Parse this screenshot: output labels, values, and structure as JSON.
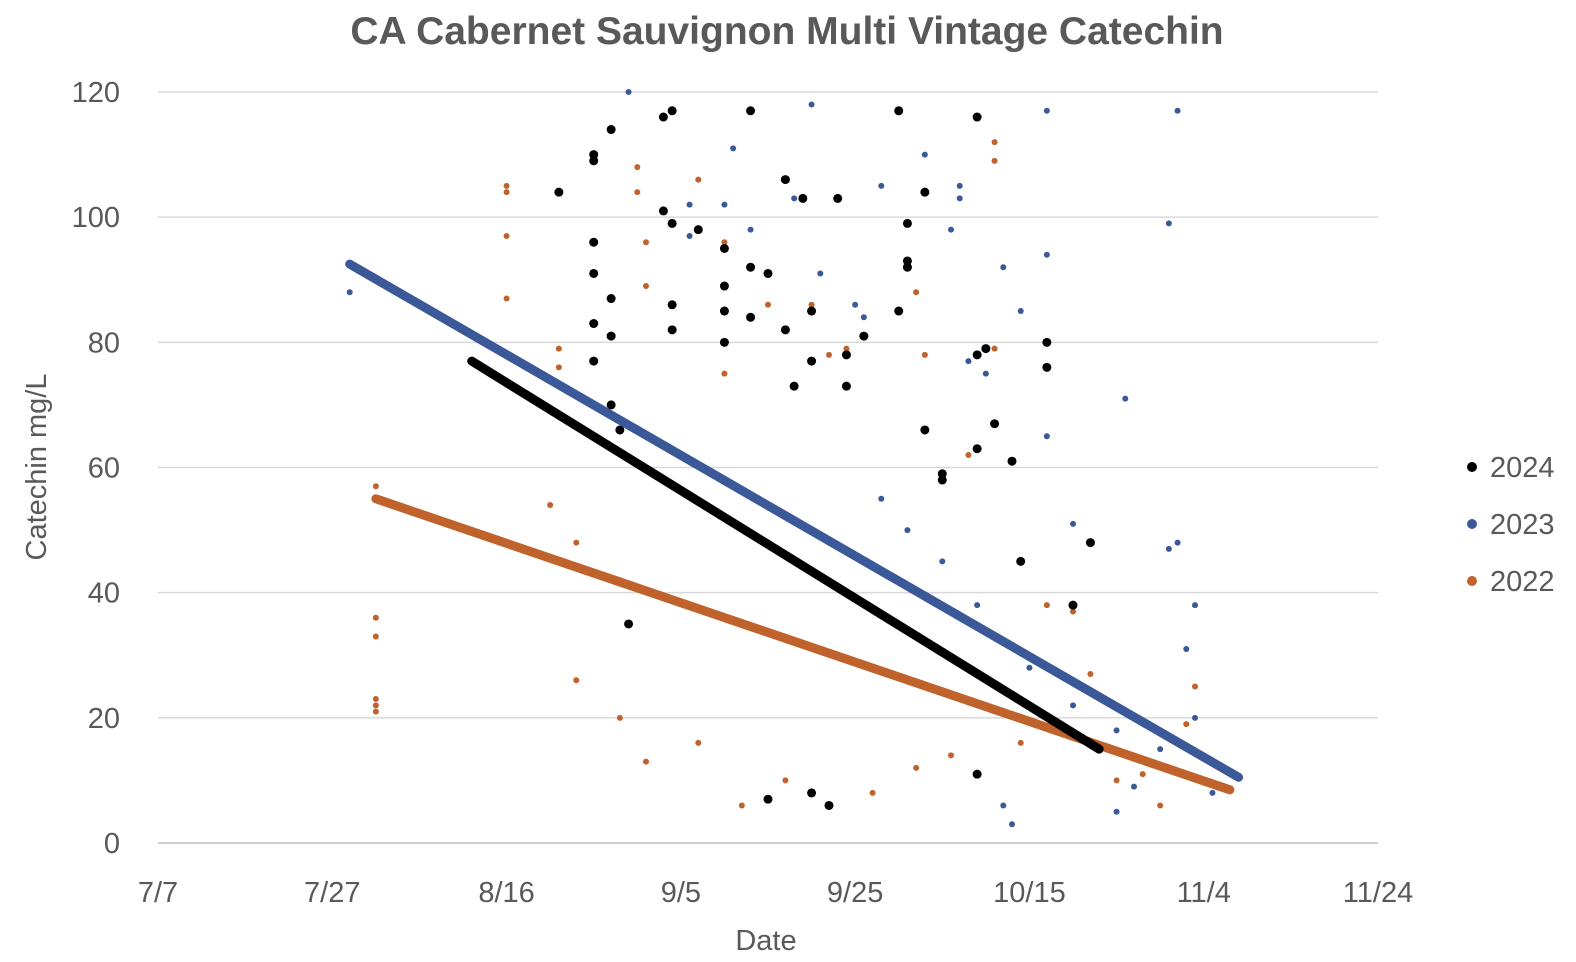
{
  "chart_data": {
    "type": "scatter",
    "title": "CA Cabernet Sauvignon Multi Vintage Catechin",
    "xlabel": "Date",
    "ylabel": "Catechin  mg/L",
    "x_ticks": [
      "7/7",
      "7/27",
      "8/16",
      "9/5",
      "9/25",
      "10/15",
      "11/4",
      "11/24"
    ],
    "y_ticks": [
      "0",
      "20",
      "40",
      "60",
      "80",
      "100",
      "120"
    ],
    "xlim": [
      "7/7",
      "11/24"
    ],
    "ylim": [
      0,
      120
    ],
    "grid": "horizontal",
    "legend_position": "right",
    "series": [
      {
        "name": "2024",
        "color": "#000000",
        "trendline": {
          "start": [
            "8/12",
            77
          ],
          "end": [
            "10/23",
            15
          ]
        },
        "points": [
          [
            "8/22",
            104
          ],
          [
            "8/26",
            110
          ],
          [
            "8/26",
            109
          ],
          [
            "8/26",
            96
          ],
          [
            "8/26",
            91
          ],
          [
            "8/26",
            83
          ],
          [
            "8/26",
            77
          ],
          [
            "8/28",
            114
          ],
          [
            "8/28",
            87
          ],
          [
            "8/28",
            81
          ],
          [
            "8/28",
            70
          ],
          [
            "8/29",
            66
          ],
          [
            "8/30",
            35
          ],
          [
            "9/3",
            116
          ],
          [
            "9/3",
            101
          ],
          [
            "9/4",
            117
          ],
          [
            "9/4",
            99
          ],
          [
            "9/4",
            86
          ],
          [
            "9/4",
            82
          ],
          [
            "9/7",
            98
          ],
          [
            "9/10",
            89
          ],
          [
            "9/10",
            85
          ],
          [
            "9/10",
            80
          ],
          [
            "9/10",
            95
          ],
          [
            "9/13",
            117
          ],
          [
            "9/13",
            92
          ],
          [
            "9/13",
            84
          ],
          [
            "9/15",
            91
          ],
          [
            "9/17",
            106
          ],
          [
            "9/17",
            82
          ],
          [
            "9/18",
            73
          ],
          [
            "9/19",
            103
          ],
          [
            "9/20",
            85
          ],
          [
            "9/20",
            77
          ],
          [
            "9/23",
            103
          ],
          [
            "9/24",
            78
          ],
          [
            "9/24",
            73
          ],
          [
            "9/26",
            81
          ],
          [
            "9/30",
            117
          ],
          [
            "9/30",
            85
          ],
          [
            "10/1",
            99
          ],
          [
            "10/1",
            93
          ],
          [
            "10/1",
            92
          ],
          [
            "10/3",
            104
          ],
          [
            "10/3",
            66
          ],
          [
            "10/5",
            59
          ],
          [
            "10/5",
            58
          ],
          [
            "10/9",
            116
          ],
          [
            "10/10",
            79
          ],
          [
            "10/9",
            78
          ],
          [
            "10/9",
            63
          ],
          [
            "10/11",
            67
          ],
          [
            "10/13",
            61
          ],
          [
            "10/14",
            45
          ],
          [
            "10/17",
            80
          ],
          [
            "10/17",
            76
          ],
          [
            "10/22",
            48
          ],
          [
            "10/20",
            38
          ],
          [
            "10/9",
            11
          ],
          [
            "9/15",
            7
          ],
          [
            "9/20",
            8
          ],
          [
            "9/22",
            6
          ]
        ]
      },
      {
        "name": "2023",
        "color": "#3b5998",
        "trendline": {
          "start": [
            "7/29",
            92.5
          ],
          "end": [
            "11/8",
            10.5
          ]
        },
        "points": [
          [
            "7/29",
            88
          ],
          [
            "8/30",
            120
          ],
          [
            "9/6",
            102
          ],
          [
            "9/6",
            97
          ],
          [
            "9/11",
            111
          ],
          [
            "9/10",
            102
          ],
          [
            "9/13",
            98
          ],
          [
            "9/20",
            118
          ],
          [
            "9/18",
            103
          ],
          [
            "9/21",
            91
          ],
          [
            "9/25",
            86
          ],
          [
            "9/26",
            84
          ],
          [
            "9/28",
            105
          ],
          [
            "10/3",
            110
          ],
          [
            "10/3",
            104
          ],
          [
            "10/6",
            98
          ],
          [
            "10/7",
            105
          ],
          [
            "10/7",
            103
          ],
          [
            "10/8",
            77
          ],
          [
            "10/10",
            75
          ],
          [
            "10/12",
            92
          ],
          [
            "10/14",
            85
          ],
          [
            "10/17",
            117
          ],
          [
            "10/17",
            94
          ],
          [
            "10/17",
            65
          ],
          [
            "10/20",
            51
          ],
          [
            "10/26",
            71
          ],
          [
            "10/31",
            47
          ],
          [
            "11/1",
            48
          ],
          [
            "11/1",
            117
          ],
          [
            "10/31",
            99
          ],
          [
            "11/3",
            38
          ],
          [
            "11/2",
            31
          ],
          [
            "11/3",
            20
          ],
          [
            "11/5",
            8
          ],
          [
            "10/30",
            15
          ],
          [
            "10/27",
            9
          ],
          [
            "10/25",
            5
          ],
          [
            "10/13",
            3
          ],
          [
            "10/12",
            6
          ],
          [
            "9/28",
            55
          ],
          [
            "10/1",
            50
          ],
          [
            "10/5",
            45
          ],
          [
            "10/9",
            38
          ],
          [
            "10/15",
            28
          ],
          [
            "10/20",
            22
          ],
          [
            "10/25",
            18
          ]
        ]
      },
      {
        "name": "2022",
        "color": "#c0622b",
        "trendline": {
          "start": [
            "8/1",
            55
          ],
          "end": [
            "11/7",
            8.5
          ]
        },
        "points": [
          [
            "8/1",
            57
          ],
          [
            "8/1",
            36
          ],
          [
            "8/1",
            33
          ],
          [
            "8/1",
            23
          ],
          [
            "8/1",
            21
          ],
          [
            "8/1",
            22
          ],
          [
            "8/16",
            105
          ],
          [
            "8/16",
            104
          ],
          [
            "8/16",
            97
          ],
          [
            "8/16",
            87
          ],
          [
            "8/21",
            54
          ],
          [
            "8/22",
            76
          ],
          [
            "8/22",
            79
          ],
          [
            "8/24",
            48
          ],
          [
            "8/24",
            26
          ],
          [
            "8/29",
            20
          ],
          [
            "8/31",
            108
          ],
          [
            "8/31",
            104
          ],
          [
            "9/1",
            96
          ],
          [
            "9/1",
            89
          ],
          [
            "9/1",
            13
          ],
          [
            "9/7",
            106
          ],
          [
            "9/7",
            16
          ],
          [
            "9/10",
            96
          ],
          [
            "9/10",
            75
          ],
          [
            "9/12",
            6
          ],
          [
            "9/15",
            86
          ],
          [
            "9/20",
            86
          ],
          [
            "9/22",
            78
          ],
          [
            "9/24",
            79
          ],
          [
            "10/2",
            88
          ],
          [
            "10/3",
            78
          ],
          [
            "10/8",
            62
          ],
          [
            "10/11",
            79
          ],
          [
            "10/11",
            112
          ],
          [
            "10/11",
            109
          ],
          [
            "10/17",
            38
          ],
          [
            "10/20",
            37
          ],
          [
            "10/22",
            27
          ],
          [
            "10/25",
            10
          ],
          [
            "10/28",
            11
          ],
          [
            "11/3",
            25
          ],
          [
            "11/2",
            19
          ],
          [
            "10/30",
            6
          ],
          [
            "9/17",
            10
          ],
          [
            "9/27",
            8
          ],
          [
            "10/2",
            12
          ],
          [
            "10/6",
            14
          ],
          [
            "10/14",
            16
          ]
        ]
      }
    ]
  }
}
